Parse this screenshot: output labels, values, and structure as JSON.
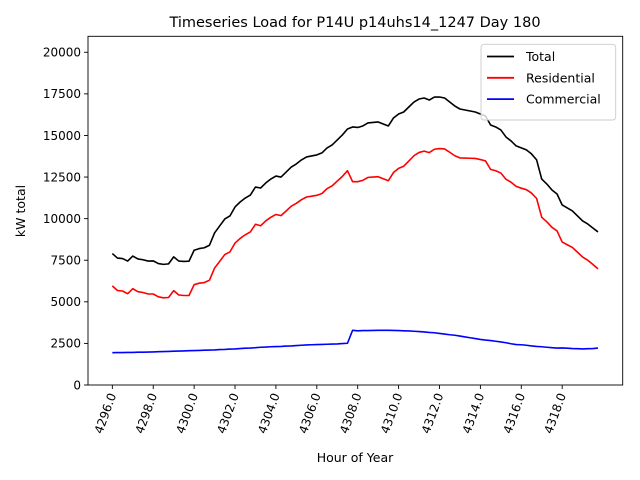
{
  "chart_data": {
    "type": "line",
    "title": "Timeseries Load for P14U p14uhs14_1247  Day 180",
    "xlabel": "Hour of Year",
    "ylabel": "kW total",
    "xlim": [
      4294.81,
      4320.96
    ],
    "ylim": [
      0,
      20960
    ],
    "grid": false,
    "legend_position": "top-right",
    "xticks": [
      4296,
      4298,
      4300,
      4302,
      4304,
      4306,
      4308,
      4310,
      4312,
      4314,
      4316,
      4318
    ],
    "xtick_labels": [
      "4296.0",
      "4298.0",
      "4300.0",
      "4302.0",
      "4304.0",
      "4306.0",
      "4308.0",
      "4310.0",
      "4312.0",
      "4314.0",
      "4316.0",
      "4318.0"
    ],
    "yticks": [
      0,
      2500,
      5000,
      7500,
      10000,
      12500,
      15000,
      17500,
      20000
    ],
    "ytick_labels": [
      "0",
      "2500",
      "5000",
      "7500",
      "10000",
      "12500",
      "15000",
      "17500",
      "20000"
    ],
    "x_start": 4296.0,
    "x_step": 0.25,
    "series": [
      {
        "name": "Total",
        "color": "#000000",
        "values": [
          7900,
          7630,
          7600,
          7450,
          7750,
          7580,
          7530,
          7450,
          7460,
          7300,
          7250,
          7280,
          7700,
          7450,
          7430,
          7440,
          8100,
          8200,
          8250,
          8400,
          9140,
          9560,
          9980,
          10160,
          10700,
          11000,
          11240,
          11420,
          11900,
          11840,
          12140,
          12380,
          12560,
          12500,
          12800,
          13100,
          13290,
          13530,
          13710,
          13770,
          13830,
          13950,
          14250,
          14430,
          14730,
          15030,
          15390,
          15510,
          15480,
          15570,
          15750,
          15780,
          15810,
          15690,
          15570,
          16050,
          16290,
          16410,
          16710,
          17010,
          17190,
          17250,
          17130,
          17310,
          17310,
          17250,
          17010,
          16770,
          16590,
          16530,
          16470,
          16410,
          16290,
          16170,
          15630,
          15510,
          15330,
          14910,
          14670,
          14370,
          14250,
          14130,
          13890,
          13530,
          12380,
          12080,
          11720,
          11480,
          10820,
          10640,
          10460,
          10160,
          9860,
          9680,
          9440,
          9200
        ]
      },
      {
        "name": "Residential",
        "color": "#ff0000",
        "values": [
          5960,
          5680,
          5650,
          5490,
          5790,
          5610,
          5560,
          5470,
          5470,
          5300,
          5240,
          5260,
          5670,
          5410,
          5380,
          5380,
          6030,
          6120,
          6160,
          6300,
          7030,
          7430,
          7840,
          8000,
          8530,
          8810,
          9030,
          9200,
          9660,
          9570,
          9860,
          10080,
          10250,
          10180,
          10460,
          10750,
          10920,
          11140,
          11300,
          11350,
          11400,
          11510,
          11800,
          11970,
          12260,
          12540,
          12880,
          12220,
          12220,
          12300,
          12480,
          12500,
          12520,
          12400,
          12280,
          12770,
          13020,
          13150,
          13460,
          13780,
          13980,
          14060,
          13970,
          14170,
          14210,
          14190,
          13990,
          13780,
          13650,
          13640,
          13630,
          13620,
          13550,
          13470,
          12960,
          12880,
          12740,
          12370,
          12190,
          11940,
          11830,
          11740,
          11540,
          11210,
          10080,
          9810,
          9480,
          9260,
          8590,
          8430,
          8270,
          7980,
          7690,
          7500,
          7250,
          6980
        ]
      },
      {
        "name": "Commercial",
        "color": "#0000ff",
        "values": [
          1940,
          1950,
          1950,
          1960,
          1960,
          1970,
          1970,
          1980,
          1990,
          2000,
          2010,
          2020,
          2030,
          2040,
          2050,
          2060,
          2070,
          2080,
          2090,
          2100,
          2110,
          2130,
          2140,
          2160,
          2170,
          2190,
          2210,
          2220,
          2240,
          2270,
          2280,
          2300,
          2310,
          2320,
          2340,
          2350,
          2370,
          2390,
          2410,
          2420,
          2430,
          2440,
          2450,
          2460,
          2470,
          2490,
          2510,
          3290,
          3260,
          3270,
          3270,
          3280,
          3290,
          3290,
          3290,
          3280,
          3270,
          3260,
          3250,
          3230,
          3210,
          3190,
          3160,
          3140,
          3100,
          3060,
          3020,
          2990,
          2940,
          2890,
          2840,
          2790,
          2740,
          2700,
          2670,
          2630,
          2590,
          2540,
          2480,
          2430,
          2420,
          2390,
          2350,
          2320,
          2300,
          2270,
          2240,
          2220,
          2230,
          2210,
          2190,
          2180,
          2170,
          2180,
          2190,
          2220
        ]
      }
    ]
  }
}
